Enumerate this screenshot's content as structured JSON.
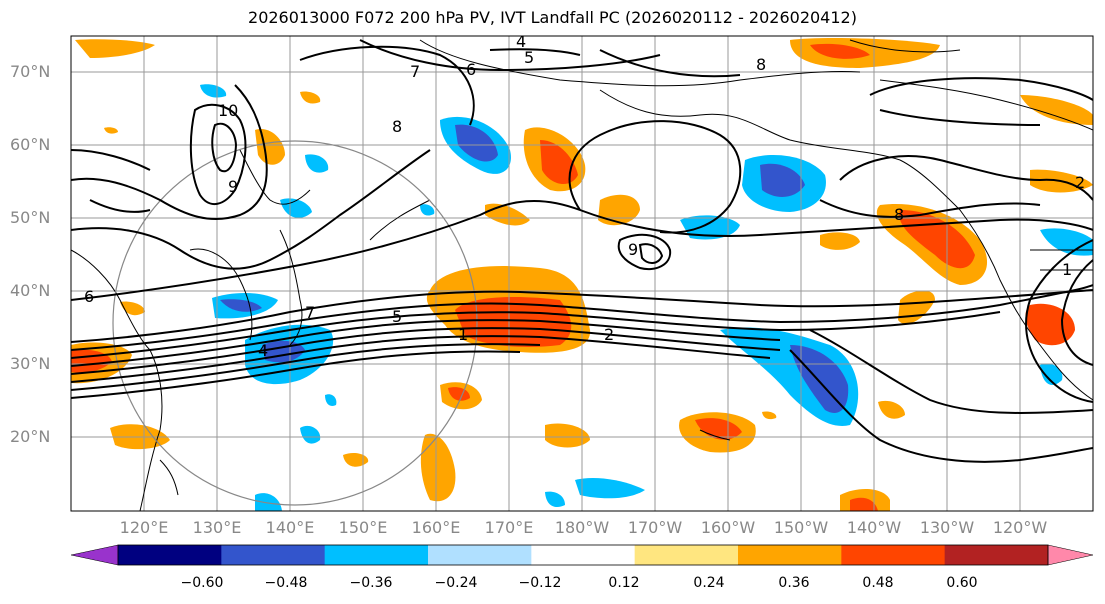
{
  "title": "2026013000 F072 200 hPa PV, IVT Landfall PC (2026020112 - 2026020412)",
  "lat_labels": [
    "70°N",
    "60°N",
    "50°N",
    "40°N",
    "30°N",
    "20°N"
  ],
  "lon_labels": [
    "120°E",
    "130°E",
    "140°E",
    "150°E",
    "160°E",
    "170°E",
    "180°W",
    "170°W",
    "160°W",
    "150°W",
    "140°W",
    "130°W",
    "120°W"
  ],
  "contour_labels": [
    "4",
    "5",
    "6",
    "7",
    "8",
    "9",
    "10",
    "1",
    "2",
    "5",
    "7",
    "8",
    "8",
    "9",
    "6",
    "4",
    "1",
    "2"
  ],
  "colorbar": {
    "colors": [
      "#9933cc",
      "#000080",
      "#3355cc",
      "#00bfff",
      "#b0e0ff",
      "#ffffff",
      "#ffe680",
      "#ffa500",
      "#ff4500",
      "#b22222",
      "#ff88aa"
    ],
    "ticks": [
      "−0.60",
      "−0.48",
      "−0.36",
      "−0.24",
      "−0.12",
      "0.12",
      "0.24",
      "0.36",
      "0.48",
      "0.60"
    ]
  }
}
